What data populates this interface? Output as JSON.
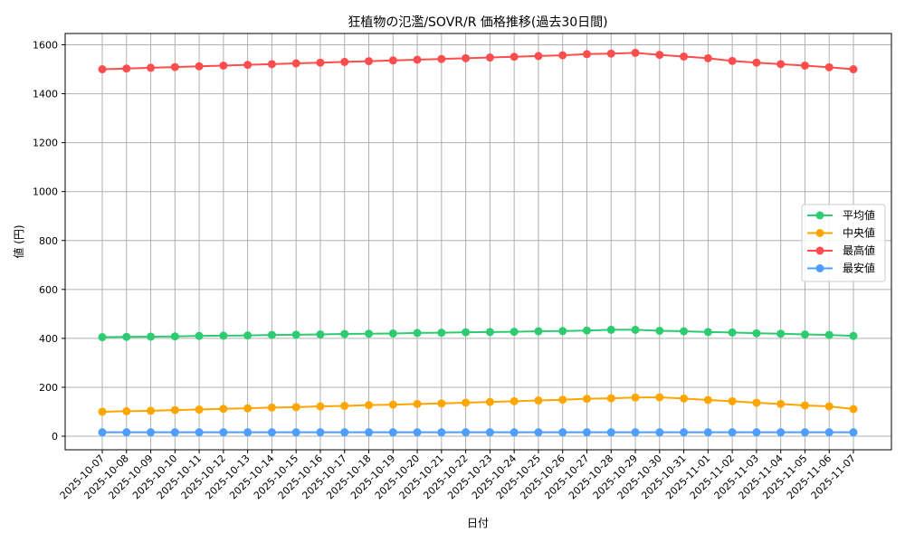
{
  "chart_data": {
    "type": "line",
    "title": "狂植物の氾濫/SOVR/R 価格推移(過去30日間)",
    "xlabel": "日付",
    "ylabel": "値 (円)",
    "ylim": [
      -55,
      1650
    ],
    "yticks": [
      0,
      200,
      400,
      600,
      800,
      1000,
      1200,
      1400,
      1600
    ],
    "grid": true,
    "legend_position": "center right",
    "x": [
      "2025-10-07",
      "2025-10-08",
      "2025-10-09",
      "2025-10-10",
      "2025-10-11",
      "2025-10-12",
      "2025-10-13",
      "2025-10-14",
      "2025-10-15",
      "2025-10-16",
      "2025-10-17",
      "2025-10-18",
      "2025-10-19",
      "2025-10-20",
      "2025-10-21",
      "2025-10-22",
      "2025-10-23",
      "2025-10-24",
      "2025-10-25",
      "2025-10-26",
      "2025-10-27",
      "2025-10-28",
      "2025-10-29",
      "2025-10-30",
      "2025-10-31",
      "2025-11-01",
      "2025-11-02",
      "2025-11-03",
      "2025-11-04",
      "2025-11-05",
      "2025-11-06",
      "2025-11-07"
    ],
    "series": [
      {
        "name": "平均値",
        "color": "#2ecc71",
        "values": [
          405,
          406,
          407,
          408,
          410,
          411,
          412,
          414,
          415,
          416,
          418,
          419,
          420,
          422,
          423,
          425,
          426,
          427,
          429,
          430,
          432,
          435,
          435,
          431,
          429,
          426,
          424,
          421,
          419,
          416,
          414,
          410
        ]
      },
      {
        "name": "中央値",
        "color": "#ffa500",
        "values": [
          100,
          102,
          104,
          107,
          109,
          112,
          114,
          117,
          119,
          122,
          124,
          127,
          129,
          132,
          134,
          137,
          140,
          143,
          146,
          149,
          153,
          155,
          158,
          159,
          154,
          148,
          143,
          137,
          132,
          126,
          122,
          111
        ]
      },
      {
        "name": "最高値",
        "color": "#ff4d4d",
        "values": [
          1500,
          1503,
          1506,
          1509,
          1512,
          1515,
          1518,
          1521,
          1524,
          1527,
          1530,
          1533,
          1536,
          1539,
          1542,
          1545,
          1548,
          1551,
          1554,
          1557,
          1562,
          1564,
          1567,
          1559,
          1552,
          1545,
          1534,
          1527,
          1521,
          1515,
          1508,
          1500
        ]
      },
      {
        "name": "最安値",
        "color": "#4d9eff",
        "values": [
          16,
          16,
          16,
          16,
          16,
          16,
          16,
          16,
          16,
          16,
          16,
          16,
          16,
          16,
          16,
          16,
          16,
          16,
          16,
          16,
          16,
          16,
          16,
          16,
          16,
          16,
          16,
          16,
          16,
          16,
          16,
          16
        ]
      }
    ]
  }
}
